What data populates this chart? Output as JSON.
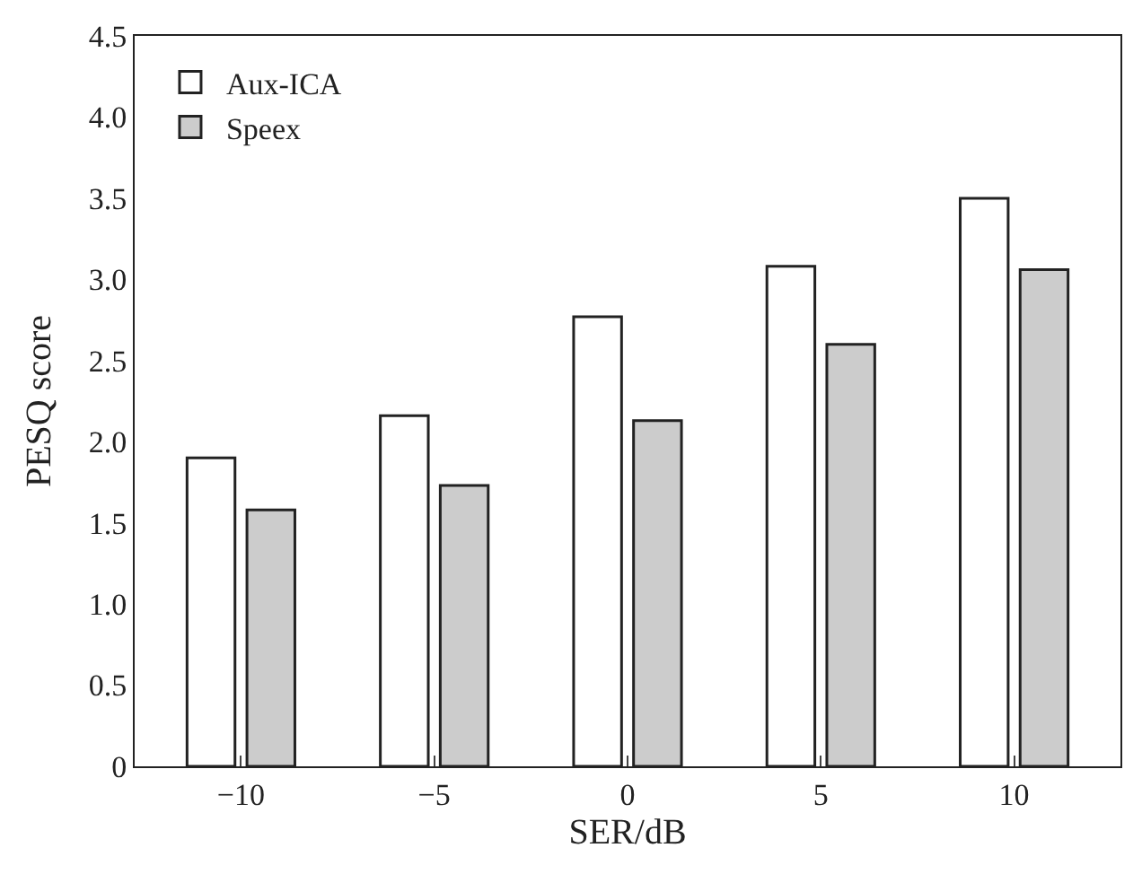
{
  "chart_data": {
    "type": "bar",
    "xlabel": "SER/dB",
    "ylabel": "PESQ score",
    "categories": [
      "−10",
      "−5",
      "0",
      "5",
      "10"
    ],
    "series": [
      {
        "name": "Aux-ICA",
        "color": "#ffffff",
        "values": [
          1.9,
          2.16,
          2.77,
          3.08,
          3.5
        ]
      },
      {
        "name": "Speex",
        "color": "#cccccc",
        "values": [
          1.58,
          1.73,
          2.13,
          2.6,
          3.06
        ]
      }
    ],
    "ylim": [
      0,
      4.5
    ],
    "yticks": [
      {
        "value": 0,
        "label": "0"
      },
      0.5,
      {
        "value": 1,
        "label": "1.0"
      },
      1.5,
      {
        "value": 2,
        "label": "2.0"
      },
      2.5,
      {
        "value": 3,
        "label": "3.0"
      },
      3.5,
      {
        "value": 4,
        "label": "4.0"
      },
      4.5
    ],
    "legend": "top left"
  }
}
